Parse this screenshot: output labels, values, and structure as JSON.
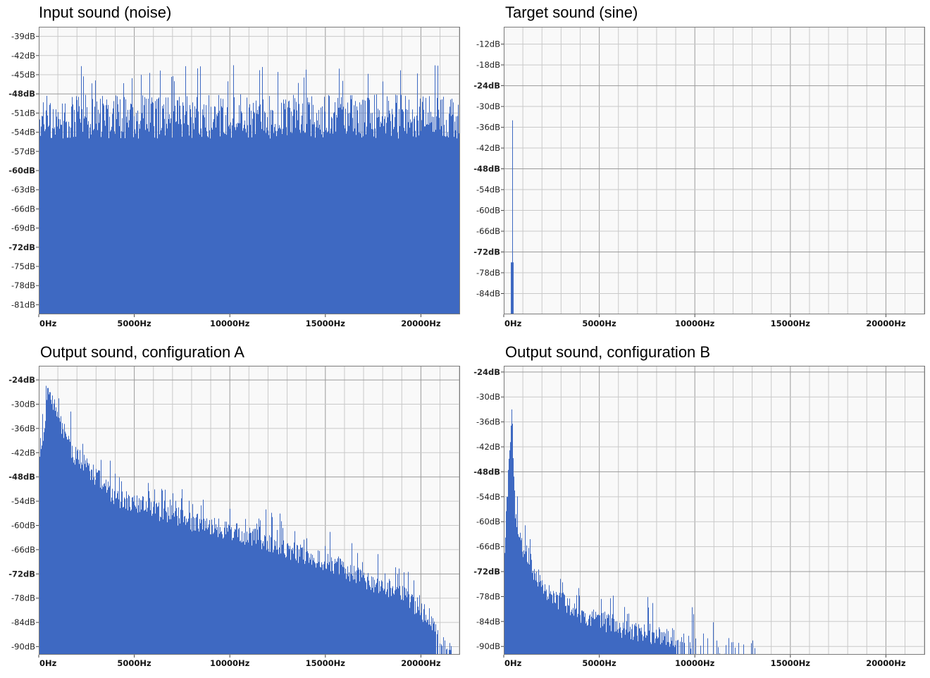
{
  "colors": {
    "bars": "#3e69c2",
    "plot_bg": "#f9f9f9",
    "grid_minor": "#c9c9c9",
    "grid_major": "#9a9a9a",
    "frame": "#7a7a7a"
  },
  "chart_data": [
    {
      "id": "input",
      "type": "bar",
      "title": "Input sound (noise)",
      "xlabel": "",
      "ylabel": "",
      "x_ticks": [
        "0Hz",
        "5000Hz",
        "10000Hz",
        "15000Hz",
        "20000Hz"
      ],
      "y_ticks": [
        "-39dB",
        "-42dB",
        "-45dB",
        "-48dB",
        "-51dB",
        "-54dB",
        "-57dB",
        "-60dB",
        "-63dB",
        "-66dB",
        "-69dB",
        "-72dB",
        "-75dB",
        "-78dB",
        "-81dB"
      ],
      "xlim": [
        0,
        22050
      ],
      "ylim": [
        -82.5,
        -37.5
      ],
      "grid": true,
      "spectrum": {
        "kind": "noise",
        "mean_db": -51.5,
        "floor_db": -55,
        "peak_db": -43.5
      }
    },
    {
      "id": "target",
      "type": "bar",
      "title": "Target sound (sine)",
      "xlabel": "",
      "ylabel": "",
      "x_ticks": [
        "0Hz",
        "5000Hz",
        "10000Hz",
        "15000Hz",
        "20000Hz"
      ],
      "y_ticks": [
        "-12dB",
        "-18dB",
        "-24dB",
        "-30dB",
        "-36dB",
        "-42dB",
        "-48dB",
        "-54dB",
        "-60dB",
        "-66dB",
        "-72dB",
        "-78dB",
        "-84dB"
      ],
      "xlim": [
        0,
        22050
      ],
      "ylim": [
        -90,
        -7
      ],
      "grid": true,
      "spectrum": {
        "kind": "sine",
        "peaks": [
          {
            "freq_hz": 440,
            "db": -34
          },
          {
            "freq_hz": 430,
            "db": -75
          }
        ]
      }
    },
    {
      "id": "output-a",
      "type": "bar",
      "title": "Output sound, configuration A",
      "xlabel": "",
      "ylabel": "",
      "x_ticks": [
        "0Hz",
        "5000Hz",
        "10000Hz",
        "15000Hz",
        "20000Hz"
      ],
      "y_ticks": [
        "-24dB",
        "-30dB",
        "-36dB",
        "-42dB",
        "-48dB",
        "-54dB",
        "-60dB",
        "-66dB",
        "-72dB",
        "-78dB",
        "-84dB",
        "-90dB"
      ],
      "xlim": [
        0,
        22050
      ],
      "ylim": [
        -92,
        -20.5
      ],
      "grid": true,
      "spectrum": {
        "kind": "decay",
        "peak_hz": 480,
        "peak_db": -26,
        "breakpoints": [
          [
            0,
            -48
          ],
          [
            480,
            -26
          ],
          [
            900,
            -32
          ],
          [
            1800,
            -42
          ],
          [
            4000,
            -53
          ],
          [
            8000,
            -59
          ],
          [
            12000,
            -64
          ],
          [
            16000,
            -71
          ],
          [
            19000,
            -77
          ],
          [
            20500,
            -83
          ],
          [
            21500,
            -91
          ]
        ],
        "cutoff_hz": 21600
      }
    },
    {
      "id": "output-b",
      "type": "bar",
      "title": "Output sound, configuration B",
      "xlabel": "",
      "ylabel": "",
      "x_ticks": [
        "0Hz",
        "5000Hz",
        "10000Hz",
        "15000Hz",
        "20000Hz"
      ],
      "y_ticks": [
        "-24dB",
        "-30dB",
        "-36dB",
        "-42dB",
        "-48dB",
        "-54dB",
        "-60dB",
        "-66dB",
        "-72dB",
        "-78dB",
        "-84dB",
        "-90dB"
      ],
      "xlim": [
        0,
        22050
      ],
      "ylim": [
        -92,
        -22.5
      ],
      "grid": true,
      "spectrum": {
        "kind": "decay",
        "peak_hz": 420,
        "peak_db": -33,
        "breakpoints": [
          [
            0,
            -70
          ],
          [
            420,
            -33
          ],
          [
            600,
            -58
          ],
          [
            1000,
            -66
          ],
          [
            2000,
            -76
          ],
          [
            4000,
            -82
          ],
          [
            6500,
            -86
          ],
          [
            9000,
            -88
          ],
          [
            12500,
            -91
          ]
        ],
        "cutoff_hz": 13200
      }
    }
  ]
}
